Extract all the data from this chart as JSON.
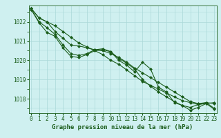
{
  "xlabel": "Graphe pression niveau de la mer (hPa)",
  "x": [
    0,
    1,
    2,
    3,
    4,
    5,
    6,
    7,
    8,
    9,
    10,
    11,
    12,
    13,
    14,
    15,
    16,
    17,
    18,
    19,
    20,
    21,
    22,
    23
  ],
  "series": [
    [
      1022.7,
      1022.2,
      1022.0,
      1021.8,
      1021.5,
      1021.2,
      1020.9,
      1020.7,
      1020.5,
      1020.3,
      1020.0,
      1019.8,
      1019.5,
      1019.2,
      1018.9,
      1018.7,
      1018.5,
      1018.3,
      1018.1,
      1017.9,
      1017.8,
      1017.7,
      1017.75,
      1017.8
    ],
    [
      1022.7,
      1022.2,
      1022.0,
      1021.5,
      1021.15,
      1020.8,
      1020.75,
      1020.65,
      1020.55,
      1020.5,
      1020.35,
      1020.15,
      1019.9,
      1019.6,
      1019.35,
      1019.1,
      1018.85,
      1018.6,
      1018.35,
      1018.1,
      1017.85,
      1017.75,
      1017.8,
      1017.75
    ],
    [
      1022.65,
      1022.0,
      1021.7,
      1021.35,
      1020.8,
      1020.35,
      1020.25,
      1020.35,
      1020.55,
      1020.6,
      1020.45,
      1020.1,
      1019.85,
      1019.55,
      1019.0,
      1018.65,
      1018.35,
      1018.1,
      1017.85,
      1017.65,
      1017.55,
      1017.7,
      1017.8,
      1017.5
    ],
    [
      1022.65,
      1021.95,
      1021.45,
      1021.25,
      1020.65,
      1020.2,
      1020.15,
      1020.3,
      1020.5,
      1020.55,
      1020.45,
      1020.0,
      1019.75,
      1019.4,
      1019.9,
      1019.55,
      1018.6,
      1018.35,
      1017.8,
      1017.65,
      1017.4,
      1017.55,
      1017.75,
      1017.45
    ]
  ],
  "line_color": "#1a5c1a",
  "marker": "D",
  "marker_size": 2.0,
  "linewidth": 0.8,
  "ylim": [
    1017.25,
    1022.85
  ],
  "xlim": [
    -0.3,
    23.3
  ],
  "yticks": [
    1018,
    1019,
    1020,
    1021,
    1022
  ],
  "xticks": [
    0,
    1,
    2,
    3,
    4,
    5,
    6,
    7,
    8,
    9,
    10,
    11,
    12,
    13,
    14,
    15,
    16,
    17,
    18,
    19,
    20,
    21,
    22,
    23
  ],
  "bg_color": "#cff0f0",
  "grid_color": "#aad8d8",
  "text_color": "#1a5c1a",
  "label_fontsize": 6.5,
  "tick_fontsize": 5.5
}
